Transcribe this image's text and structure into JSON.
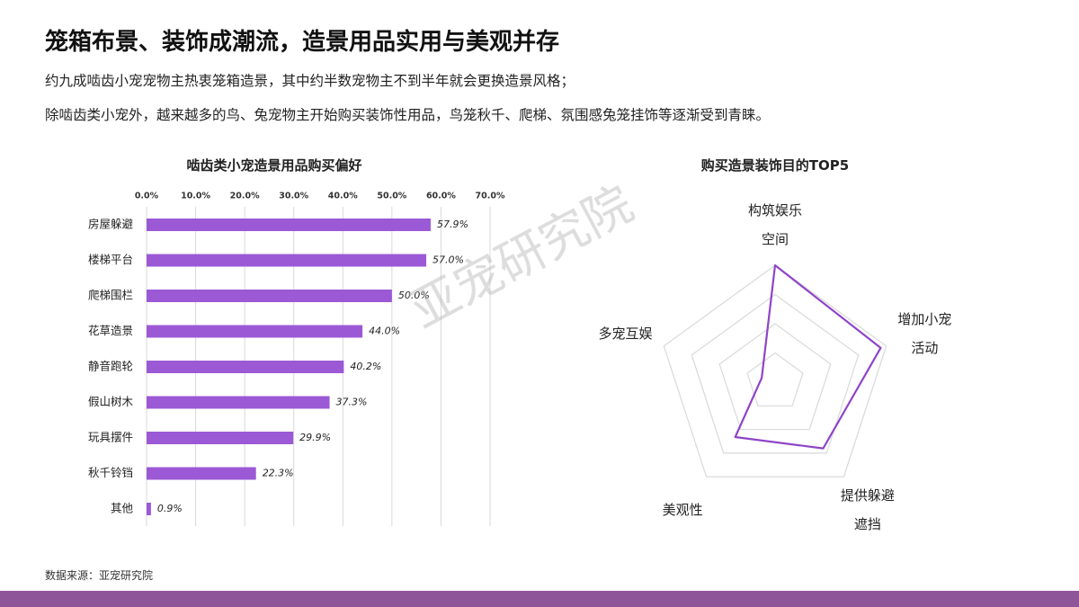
{
  "header": {
    "title": "笼箱布景、装饰成潮流，造景用品实用与美观并存",
    "lines": [
      "约九成啮齿小宠宠物主热衷笼箱造景，其中约半数宠物主不到半年就会更换造景风格；",
      "除啮齿类小宠外，越来越多的鸟、兔宠物主开始购买装饰性用品，鸟笼秋千、爬梯、氛围感兔笼挂饰等逐渐受到青睐。"
    ]
  },
  "watermark": "亚宠研究院",
  "source": "数据来源：亚宠研究院",
  "chart_data": [
    {
      "type": "bar",
      "orientation": "horizontal",
      "title": "啮齿类小宠造景用品购买偏好",
      "categories": [
        "房屋躲避",
        "楼梯平台",
        "爬梯围栏",
        "花草造景",
        "静音跑轮",
        "假山树木",
        "玩具摆件",
        "秋千铃铛",
        "其他"
      ],
      "values": [
        57.9,
        57.0,
        50.0,
        44.0,
        40.2,
        37.3,
        29.9,
        22.3,
        0.9
      ],
      "value_labels": [
        "57.9%",
        "57.0%",
        "50.0%",
        "44.0%",
        "40.2%",
        "37.3%",
        "29.9%",
        "22.3%",
        "0.9%"
      ],
      "color": "#9b59d6",
      "xlim": [
        0,
        70
      ],
      "xticks": [
        {
          "value": 0,
          "label": "0.0%"
        },
        {
          "value": 10,
          "label": "10.0%"
        },
        {
          "value": 20,
          "label": "20.0%"
        },
        {
          "value": 30,
          "label": "30.0%"
        },
        {
          "value": 40,
          "label": "40.0%"
        },
        {
          "value": 50,
          "label": "50.0%"
        },
        {
          "value": 60,
          "label": "60.0%"
        },
        {
          "value": 70,
          "label": "70.0%"
        }
      ],
      "grid": true
    },
    {
      "type": "radar",
      "title": "购买造景装饰目的TOP5",
      "categories": [
        "构筑娱乐空间",
        "增加小宠活动",
        "提供躲避遮挡",
        "美观性",
        "多宠互娱"
      ],
      "values": [
        100,
        95,
        70,
        58,
        12
      ],
      "rlim": [
        0,
        100
      ],
      "rticks": [
        25,
        50,
        75,
        100
      ],
      "color": "#8e44c8",
      "grid": true
    }
  ]
}
